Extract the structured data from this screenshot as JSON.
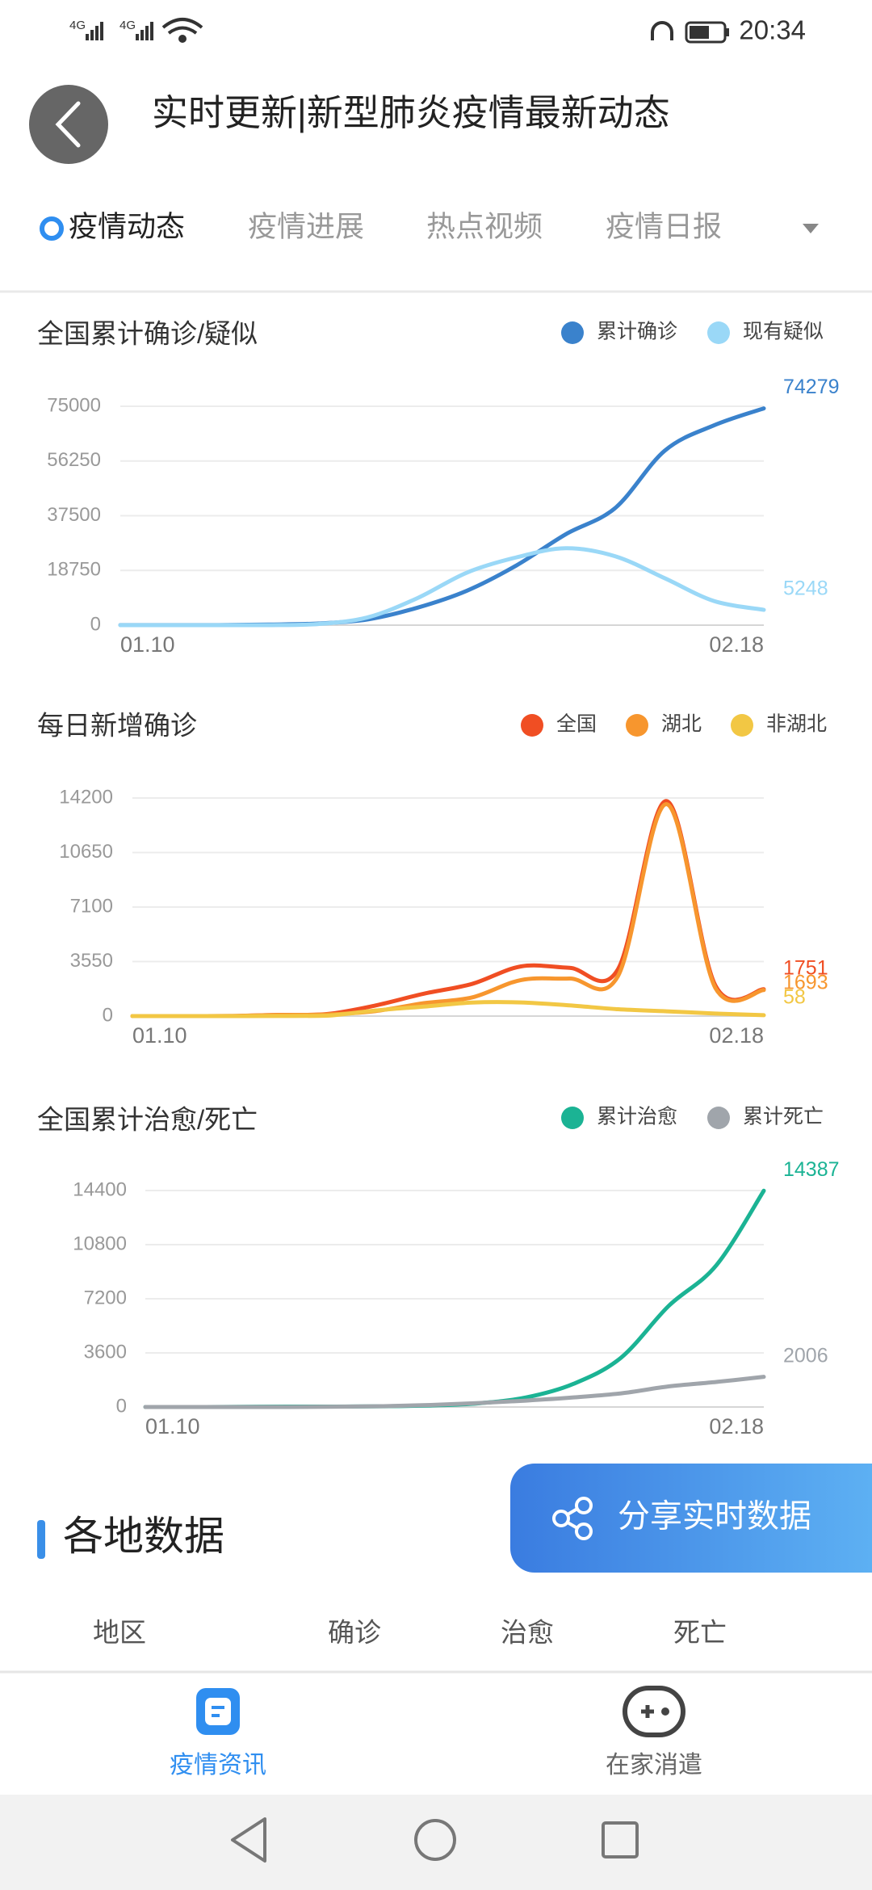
{
  "status_bar": {
    "network": [
      "4G",
      "4G"
    ],
    "time": "20:34"
  },
  "header": {
    "title": "实时更新|新型肺炎疫情最新动态"
  },
  "tabs": [
    "疫情动态",
    "疫情进展",
    "热点视频",
    "疫情日报"
  ],
  "chart_data": [
    {
      "type": "line",
      "title": "全国累计确诊/疑似",
      "categories": [
        "01.10",
        null,
        null,
        null,
        null,
        null,
        null,
        null,
        null,
        null,
        null,
        null,
        null,
        "02.18"
      ],
      "series": [
        {
          "name": "累计确诊",
          "color": "#3a82cc",
          "values": [
            41,
            41,
            45,
            198,
            571,
            1975,
            5974,
            11791,
            20438,
            31161,
            40171,
            59804,
            68500,
            74279
          ]
        },
        {
          "name": "现有疑似",
          "color": "#9ad8f7",
          "values": [
            0,
            0,
            0,
            0,
            393,
            2684,
            9239,
            17988,
            23214,
            26359,
            23589,
            16067,
            8228,
            5248
          ]
        }
      ],
      "ylim": [
        0,
        75000
      ],
      "yticks": [
        0,
        18750,
        37500,
        56250,
        75000
      ],
      "grid": true
    },
    {
      "type": "line",
      "title": "每日新增确诊",
      "categories": [
        "01.10",
        null,
        null,
        null,
        null,
        null,
        null,
        null,
        null,
        null,
        null,
        null,
        null,
        "02.18"
      ],
      "series": [
        {
          "name": "全国",
          "color": "#f04e23",
          "values": [
            0,
            0,
            4,
            77,
            131,
            688,
            1459,
            2102,
            3235,
            3143,
            3062,
            14000,
            2009,
            1751
          ]
        },
        {
          "name": "湖北",
          "color": "#f7962e",
          "values": [
            0,
            0,
            4,
            72,
            105,
            323,
            840,
            1220,
            2345,
            2447,
            2618,
            13800,
            1843,
            1693
          ]
        },
        {
          "name": "非湖北",
          "color": "#f2c744",
          "values": [
            0,
            0,
            0,
            5,
            26,
            365,
            619,
            882,
            890,
            696,
            444,
            312,
            166,
            58
          ]
        }
      ],
      "ylim": [
        0,
        14200
      ],
      "yticks": [
        0,
        3550,
        7100,
        10650,
        14200
      ],
      "grid": true
    },
    {
      "type": "line",
      "title": "全国累计治愈/死亡",
      "categories": [
        "01.10",
        null,
        null,
        null,
        null,
        null,
        null,
        null,
        null,
        null,
        null,
        null,
        null,
        "02.18"
      ],
      "series": [
        {
          "name": "累计治愈",
          "color": "#1bb394",
          "values": [
            0,
            0,
            12,
            25,
            28,
            49,
            103,
            243,
            632,
            1540,
            3281,
            6723,
            9419,
            14387
          ]
        },
        {
          "name": "累计死亡",
          "color": "#a0a5ab",
          "values": [
            0,
            1,
            2,
            3,
            17,
            56,
            132,
            259,
            425,
            636,
            908,
            1368,
            1666,
            2006
          ]
        }
      ],
      "ylim": [
        0,
        14400
      ],
      "yticks": [
        0,
        3600,
        7200,
        10800,
        14400
      ],
      "grid": true
    }
  ],
  "section": {
    "title": "各地数据",
    "columns": [
      "地区",
      "确诊",
      "治愈",
      "死亡"
    ]
  },
  "share_button": {
    "label": "分享实时数据"
  },
  "bottom_nav": [
    "疫情资讯",
    "在家消遣"
  ]
}
